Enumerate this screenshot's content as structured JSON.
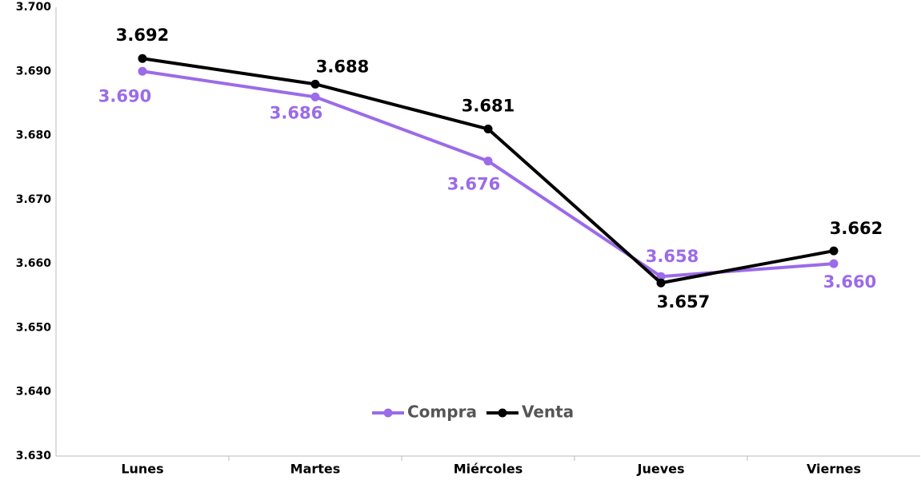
{
  "chart_data": {
    "type": "line",
    "categories": [
      "Lunes",
      "Martes",
      "Miércoles",
      "Jueves",
      "Viernes"
    ],
    "series": [
      {
        "name": "Compra",
        "color": "#9b6be8",
        "values": [
          3.69,
          3.686,
          3.676,
          3.658,
          3.66
        ],
        "value_labels": [
          "3.690",
          "3.686",
          "3.676",
          "3.658",
          "3.660"
        ]
      },
      {
        "name": "Venta",
        "color": "#000000",
        "values": [
          3.692,
          3.688,
          3.681,
          3.657,
          3.662
        ],
        "value_labels": [
          "3.692",
          "3.688",
          "3.681",
          "3.657",
          "3.662"
        ]
      }
    ],
    "ylim": [
      3.63,
      3.7
    ],
    "yticks": [
      {
        "value": 3.63,
        "label": "3.630"
      },
      {
        "value": 3.64,
        "label": "3.640"
      },
      {
        "value": 3.65,
        "label": "3.650"
      },
      {
        "value": 3.66,
        "label": "3.660"
      },
      {
        "value": 3.67,
        "label": "3.670"
      },
      {
        "value": 3.68,
        "label": "3.680"
      },
      {
        "value": 3.69,
        "label": "3.690"
      },
      {
        "value": 3.7,
        "label": "3.700"
      }
    ],
    "grid": false,
    "legend": "bottom"
  }
}
